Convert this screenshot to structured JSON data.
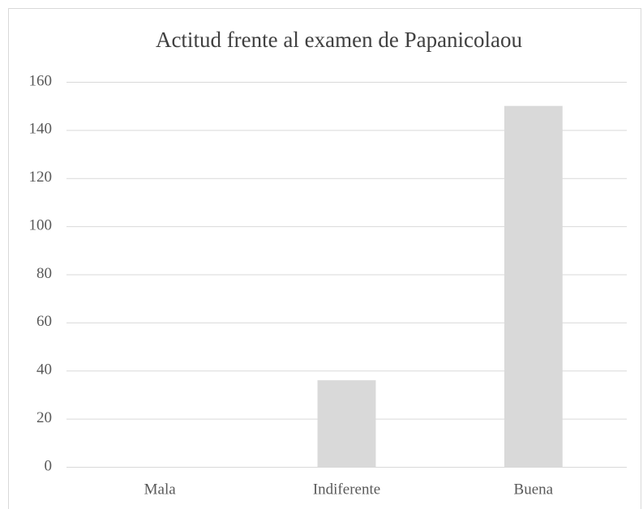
{
  "chart_data": {
    "type": "bar",
    "title": "Actitud frente al examen de Papanicolaou",
    "categories": [
      "Mala",
      "Indiferente",
      "Buena"
    ],
    "values": [
      0,
      36,
      150
    ],
    "color": "#d9d9d9",
    "ylim": [
      0,
      160
    ],
    "yticks": [
      0,
      20,
      40,
      60,
      80,
      100,
      120,
      140,
      160
    ],
    "grid": true
  }
}
